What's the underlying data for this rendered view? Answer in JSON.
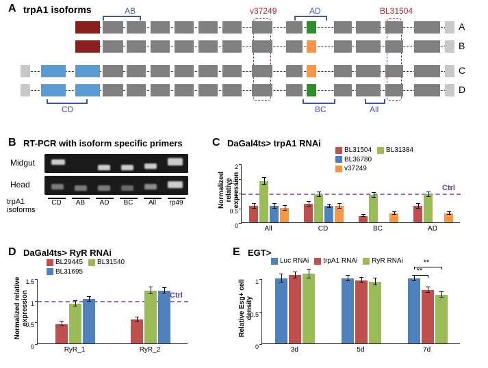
{
  "panels": {
    "A": {
      "label": "A",
      "title": "trpA1 isoforms"
    },
    "B": {
      "label": "B",
      "title": "RT-PCR with isoform specific primers"
    },
    "C": {
      "label": "C",
      "title": "DaGal4ts> trpA1 RNAi"
    },
    "D": {
      "label": "D",
      "title": "DaGal4ts> RyR RNAi"
    },
    "E": {
      "label": "E",
      "title": "EGT>"
    }
  },
  "colors": {
    "exon_gray": "#808080",
    "exon_light": "#c8c8c8",
    "exon_darkred": "#8b2020",
    "exon_blue": "#5a9bd4",
    "exon_green": "#2e8b2e",
    "exon_orange": "#f79646",
    "bracket": "#3b5998",
    "dashed_red": "#b22222",
    "series_red": "#c0504d",
    "series_green": "#9bbb59",
    "series_blue": "#4f81bd",
    "series_orange": "#f79646",
    "ctrl_dash": "#9966cc",
    "ctrl_text": "#663399"
  },
  "isoforms": {
    "labels": [
      "A",
      "B",
      "C",
      "D"
    ],
    "brackets": {
      "AB": "AB",
      "CD": "CD",
      "AD": "AD",
      "BC": "BC",
      "All": "All"
    },
    "dashed": {
      "v37249": "v37249",
      "BL31504": "BL31504"
    }
  },
  "panelB": {
    "rows": [
      "Midgut",
      "Head"
    ],
    "axis_label": "trpA1\nisoforms",
    "lanes": [
      "CD",
      "AB",
      "AD",
      "BC",
      "All",
      "rp49"
    ]
  },
  "panelC": {
    "ylabel": "Normalized relative\nexpression",
    "ylim": [
      0,
      2
    ],
    "yticks": [
      0,
      0.5,
      1,
      1.5,
      2
    ],
    "groups": [
      "All",
      "CD",
      "BC",
      "AD"
    ],
    "series": [
      {
        "name": "BL31504",
        "color": "#c0504d",
        "values": [
          0.55,
          0.62,
          0.22,
          0.55
        ],
        "err": [
          0.08,
          0.08,
          0.03,
          0.08
        ]
      },
      {
        "name": "BL31384",
        "color": "#9bbb59",
        "values": [
          1.4,
          0.95,
          0.92,
          0.95
        ],
        "err": [
          0.12,
          0.08,
          0.08,
          0.08
        ]
      },
      {
        "name": "BL36780",
        "color": "#4f81bd",
        "values": [
          0.55,
          0.55,
          0,
          0
        ],
        "err": [
          0.08,
          0.05,
          0,
          0
        ]
      },
      {
        "name": "v37249",
        "color": "#f79646",
        "values": [
          0.48,
          0.55,
          0.3,
          0.3
        ],
        "err": [
          0.08,
          0.08,
          0.05,
          0.05
        ]
      }
    ],
    "ctrl_at": 1.0,
    "ctrl_label": "Ctrl"
  },
  "panelD": {
    "ylabel": "Normalized relative\nexpression",
    "ylim": [
      0,
      1.5
    ],
    "yticks": [
      0,
      0.5,
      1,
      1.5
    ],
    "groups": [
      "RyR_1",
      "RyR_2"
    ],
    "series": [
      {
        "name": "BL29445",
        "color": "#c0504d",
        "values": [
          0.45,
          0.55
        ],
        "err": [
          0.05,
          0.05
        ]
      },
      {
        "name": "BL31540",
        "color": "#9bbb59",
        "values": [
          0.92,
          1.22
        ],
        "err": [
          0.06,
          0.08
        ]
      },
      {
        "name": "BL31695",
        "color": "#4f81bd",
        "values": [
          1.02,
          1.22
        ],
        "err": [
          0.06,
          0.06
        ]
      }
    ],
    "ctrl_at": 1.0,
    "ctrl_label": "Ctrl"
  },
  "panelE": {
    "ylabel": "Relative Esg+ cell\ndensity",
    "ylim": [
      0,
      1
    ],
    "yticks": [
      0,
      0.5,
      1
    ],
    "groups": [
      "3d",
      "5d",
      "7d"
    ],
    "series": [
      {
        "name": "Luc RNAi",
        "color": "#4f81bd",
        "values": [
          1.0,
          1.0,
          1.0
        ],
        "err": [
          0.06,
          0.04,
          0.04
        ]
      },
      {
        "name": "trpA1 RNAi",
        "color": "#c0504d",
        "values": [
          1.05,
          0.97,
          0.82
        ],
        "err": [
          0.05,
          0.04,
          0.04
        ]
      },
      {
        "name": "RyR RNAi",
        "color": "#9bbb59",
        "values": [
          1.07,
          0.95,
          0.75
        ],
        "err": [
          0.07,
          0.05,
          0.04
        ]
      }
    ],
    "sig": [
      {
        "group": 2,
        "pairs": [
          [
            0,
            1,
            "**"
          ],
          [
            0,
            2,
            "**"
          ]
        ]
      }
    ]
  }
}
